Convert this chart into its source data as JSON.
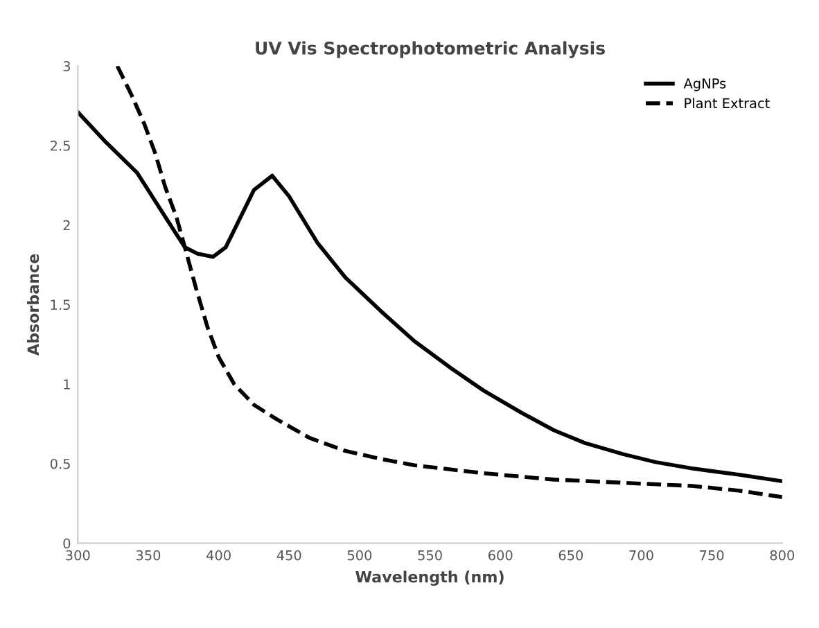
{
  "chart_data": {
    "type": "line",
    "title": "UV Vis Spectrophotometric Analysis",
    "xlabel": "Wavelength (nm)",
    "ylabel": "Absorbance",
    "xlim": [
      300,
      800
    ],
    "xticks": [
      300,
      350,
      400,
      450,
      500,
      550,
      600,
      650,
      700,
      750,
      800
    ],
    "ylim": [
      0,
      3
    ],
    "yticks": [
      0,
      0.5,
      1,
      1.5,
      2,
      2.5,
      3
    ],
    "grid": false,
    "legend": "top right",
    "series": [
      {
        "name": "AgNPs",
        "color": "#000000",
        "line_style": "solid",
        "x": [
          300,
          320,
          342,
          360,
          376,
          385,
          396,
          405,
          415,
          425,
          438,
          450,
          470,
          490,
          515,
          539,
          565,
          588,
          615,
          638,
          660,
          687,
          710,
          736,
          770,
          800
        ],
        "values": [
          2.71,
          2.52,
          2.33,
          2.08,
          1.86,
          1.82,
          1.8,
          1.86,
          2.04,
          2.22,
          2.31,
          2.18,
          1.89,
          1.67,
          1.46,
          1.27,
          1.1,
          0.96,
          0.82,
          0.71,
          0.63,
          0.56,
          0.51,
          0.47,
          0.43,
          0.39
        ]
      },
      {
        "name": "Plant Extract",
        "color": "#000000",
        "line_style": "dashed",
        "x": [
          328,
          338,
          347,
          355,
          362,
          370,
          376,
          384,
          392,
          400,
          411,
          425,
          441,
          465,
          490,
          515,
          539,
          588,
          638,
          687,
          736,
          770,
          800
        ],
        "values": [
          3.0,
          2.82,
          2.64,
          2.45,
          2.24,
          2.05,
          1.86,
          1.6,
          1.36,
          1.17,
          1.0,
          0.87,
          0.78,
          0.66,
          0.58,
          0.53,
          0.49,
          0.44,
          0.4,
          0.38,
          0.36,
          0.33,
          0.29
        ]
      }
    ]
  }
}
